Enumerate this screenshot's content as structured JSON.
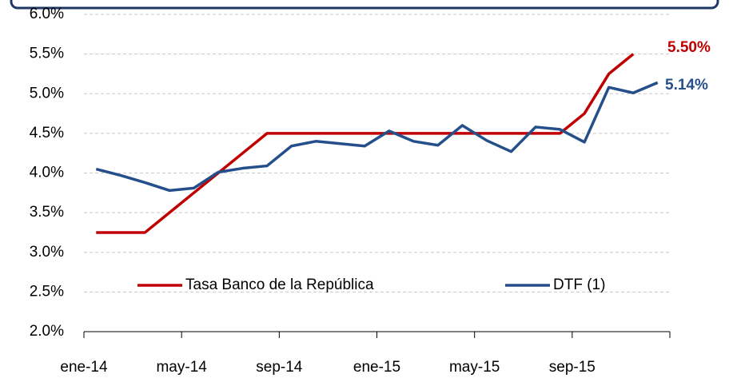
{
  "chart_data": {
    "type": "line",
    "categories": [
      "ene-14",
      null,
      null,
      null,
      "may-14",
      null,
      null,
      null,
      "sep-14",
      null,
      null,
      null,
      "ene-15",
      null,
      null,
      null,
      "may-15",
      null,
      null,
      null,
      "sep-15",
      null,
      null,
      null
    ],
    "series": [
      {
        "name": "Tasa Banco de la República",
        "color": "#c00000",
        "values": [
          3.25,
          3.25,
          3.25,
          3.5,
          3.75,
          4.0,
          4.25,
          4.5,
          4.5,
          4.5,
          4.5,
          4.5,
          4.5,
          4.5,
          4.5,
          4.5,
          4.5,
          4.5,
          4.5,
          4.5,
          4.75,
          5.25,
          5.5,
          null
        ],
        "value_labels": [
          null,
          null,
          null,
          null,
          null,
          null,
          null,
          null,
          null,
          null,
          null,
          null,
          null,
          null,
          null,
          null,
          null,
          null,
          null,
          null,
          null,
          null,
          "5.50%",
          null
        ]
      },
      {
        "name": "DTF (1)",
        "color": "#254f8a",
        "values": [
          4.05,
          3.97,
          3.88,
          3.78,
          3.81,
          4.01,
          4.06,
          4.09,
          4.34,
          4.4,
          4.37,
          4.34,
          4.53,
          4.4,
          4.35,
          4.6,
          4.41,
          4.27,
          4.58,
          4.55,
          4.39,
          5.08,
          5.01,
          5.14
        ],
        "value_labels": [
          null,
          null,
          null,
          null,
          null,
          null,
          null,
          null,
          null,
          null,
          null,
          null,
          null,
          null,
          null,
          null,
          null,
          null,
          null,
          null,
          null,
          null,
          null,
          "5.14%"
        ]
      }
    ],
    "ylim": [
      2.0,
      6.0
    ],
    "yticks": [
      {
        "value": 2.0,
        "label": "2.0%"
      },
      {
        "value": 2.5,
        "label": "2.5%"
      },
      {
        "value": 3.0,
        "label": "3.0%"
      },
      {
        "value": 3.5,
        "label": "3.5%"
      },
      {
        "value": 4.0,
        "label": "4.0%"
      },
      {
        "value": 4.5,
        "label": "4.5%"
      },
      {
        "value": 5.0,
        "label": "5.0%"
      },
      {
        "value": 5.5,
        "label": "5.5%"
      },
      {
        "value": 6.0,
        "label": "6.0%"
      }
    ],
    "grid": true,
    "legend": "bottom"
  }
}
